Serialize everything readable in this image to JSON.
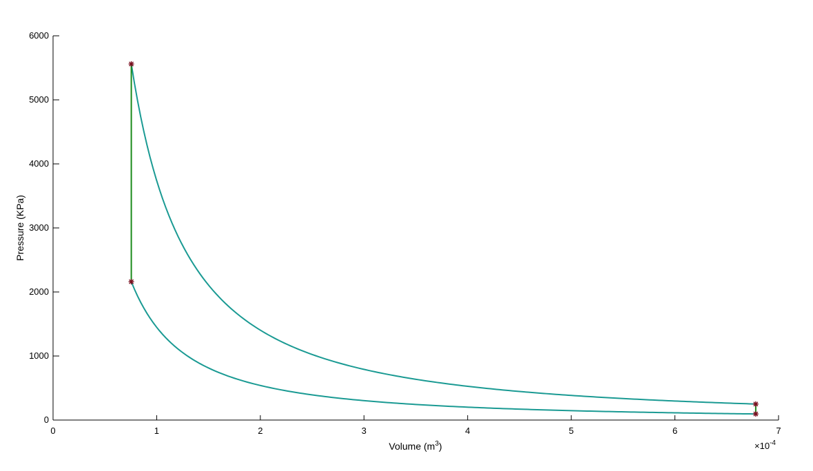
{
  "chart_data": {
    "type": "line",
    "title": "",
    "xlabel_main": "Volume (m",
    "xlabel_sup": "3",
    "xlabel_close": ")",
    "ylabel": "Pressure (KPa)",
    "x_scale_base": "×10",
    "x_scale_exp": "-4",
    "xlim": [
      0,
      7
    ],
    "ylim": [
      0,
      6000
    ],
    "x_ticks": [
      0,
      1,
      2,
      3,
      4,
      5,
      6,
      7
    ],
    "y_ticks": [
      0,
      1000,
      2000,
      3000,
      4000,
      5000,
      6000
    ],
    "grid": false,
    "colors": {
      "curve": "#1a9a93",
      "vertical": "#1a8a1a",
      "marker": "#7a1020"
    },
    "series": [
      {
        "kind": "polytropic",
        "points": [
          [
            0.755,
            5560
          ],
          [
            6.78,
            250
          ]
        ]
      },
      {
        "kind": "polytropic",
        "points": [
          [
            0.755,
            2160
          ],
          [
            6.78,
            95
          ]
        ]
      },
      {
        "kind": "constant-volume",
        "points": [
          [
            0.755,
            2160
          ],
          [
            0.755,
            5560
          ]
        ]
      },
      {
        "kind": "constant-volume",
        "points": [
          [
            6.78,
            95
          ],
          [
            6.78,
            250
          ]
        ]
      }
    ],
    "state_points": [
      [
        0.755,
        5560
      ],
      [
        0.755,
        2160
      ],
      [
        6.78,
        250
      ],
      [
        6.78,
        95
      ]
    ]
  }
}
